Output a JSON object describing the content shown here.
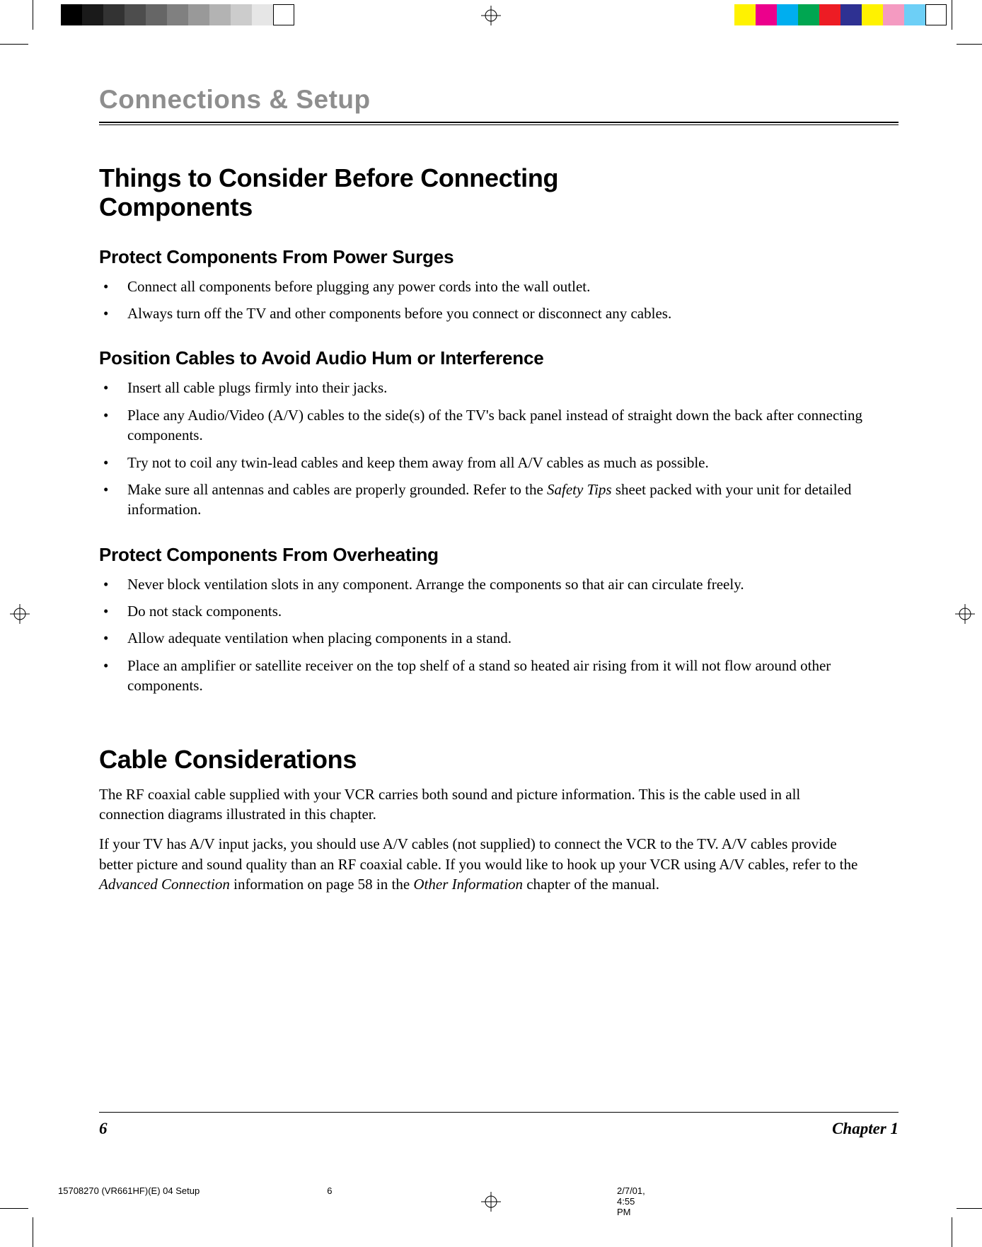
{
  "colorbar": {
    "left": [
      "#000000",
      "#1a1a1a",
      "#333333",
      "#4d4d4d",
      "#666666",
      "#808080",
      "#999999",
      "#b3b3b3",
      "#cccccc",
      "#e6e6e6",
      "#ffffff"
    ],
    "right": [
      "#fff200",
      "#ec008c",
      "#00aeef",
      "#00a651",
      "#ed1c24",
      "#2e3192",
      "#fff200",
      "#f49ac1",
      "#6dcff6",
      "#ffffff"
    ]
  },
  "chapter_head": "Connections & Setup",
  "section1": {
    "title": "Things to Consider Before Connecting Components",
    "sub1": "Protect Components From Power Surges",
    "sub1_items": [
      "Connect all components before plugging any power cords into the wall outlet.",
      "Always turn off the TV and other components before you connect or disconnect any cables."
    ],
    "sub2": "Position Cables to Avoid Audio Hum or Interference",
    "sub2_items": [
      "Insert all cable plugs firmly into their jacks.",
      "Place any Audio/Video (A/V) cables to the side(s) of the TV's back panel instead of straight down the back after connecting components.",
      "Try not to coil any twin-lead cables and keep them away from all A/V cables as much as possible."
    ],
    "sub2_item4_pre": "Make sure all antennas and cables are properly grounded. Refer to the ",
    "sub2_item4_ital": "Safety Tips",
    "sub2_item4_post": " sheet packed with your unit for detailed information.",
    "sub3": "Protect Components From Overheating",
    "sub3_items": [
      "Never block ventilation slots in any component. Arrange the components so that air can circulate freely.",
      "Do not stack components.",
      "Allow adequate ventilation when placing components in a stand.",
      "Place an amplifier or satellite receiver on the top shelf of a stand so heated air rising from it will not flow around other components."
    ]
  },
  "section2": {
    "title": "Cable Considerations",
    "p1": "The RF coaxial cable supplied with your VCR carries both sound and picture information. This is the cable used in all connection diagrams illustrated in this chapter.",
    "p2_pre": "If your TV has A/V input jacks, you should use A/V cables (not supplied) to connect the VCR to the TV. A/V cables provide better picture and sound quality than an RF coaxial cable. If you would like to hook up your VCR using A/V cables, refer to the ",
    "p2_ital1": "Advanced Connection",
    "p2_mid": " information on page 58 in the ",
    "p2_ital2": "Other Information",
    "p2_post": " chapter of the manual."
  },
  "footer": {
    "page": "6",
    "chapter": "Chapter 1"
  },
  "slug": {
    "file": "15708270 (VR661HF)(E) 04 Setup",
    "pg": "6",
    "ts": "2/7/01, 4:55 PM"
  }
}
